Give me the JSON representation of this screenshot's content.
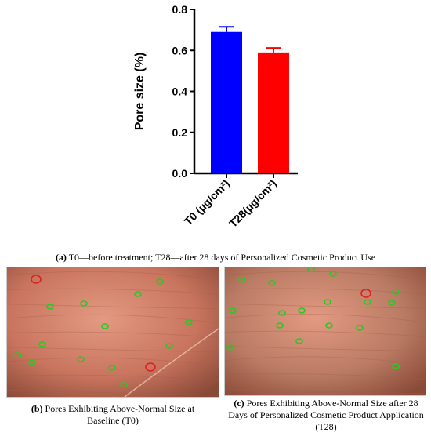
{
  "chart_data": {
    "type": "bar",
    "categories": [
      "T0 (µg/cm²)",
      "T28(µg/cm²)"
    ],
    "values": [
      0.69,
      0.59
    ],
    "errors": [
      0.025,
      0.022
    ],
    "colors": [
      "#0000ff",
      "#ff0000"
    ],
    "ylabel": "Pore size (%)",
    "ylim": [
      0,
      0.8
    ],
    "yticks": [
      "0.0",
      "0.2",
      "0.4",
      "0.6",
      "0.8"
    ],
    "grid": false
  },
  "captions": {
    "a_label": "(a)",
    "a_text": " T0—before treatment; T28—after 28 days of Personalized Cosmetic Product Use",
    "b_label": "(b)",
    "b_text": " Pores Exhibiting Above-Normal Size at Baseline (T0)",
    "c_label": "(c)",
    "c_text": " Pores Exhibiting Above-Normal Size after 28 Days of Personalized Cosmetic Product Application (T28)"
  },
  "photo_colors": {
    "skin_left": "#c8745e",
    "skin_right": "#b97a63",
    "normal_pore": "#22cc22",
    "large_pore": "#e02020"
  }
}
